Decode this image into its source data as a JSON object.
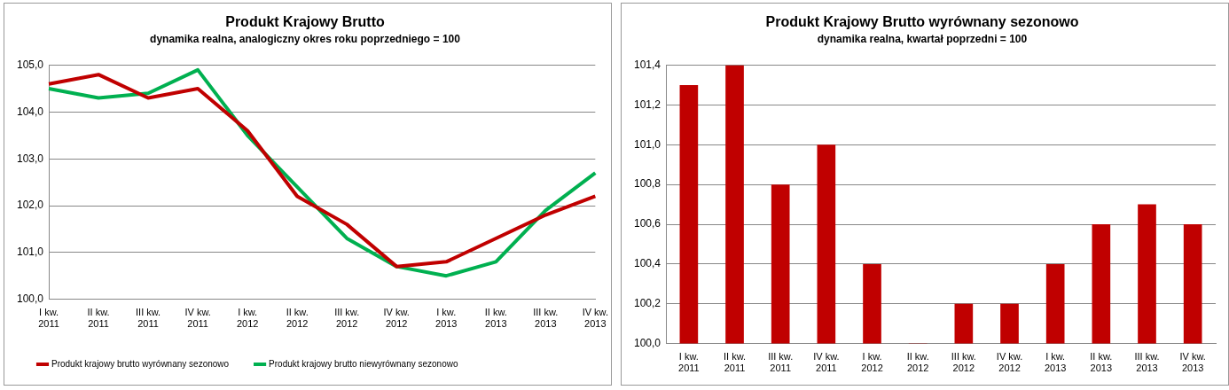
{
  "chart_data": [
    {
      "type": "line",
      "title": "Produkt Krajowy Brutto",
      "subtitle": "dynamika realna, analogiczny okres roku poprzedniego = 100",
      "categories": [
        "I kw. 2011",
        "II kw. 2011",
        "III kw. 2011",
        "IV kw. 2011",
        "I kw. 2012",
        "II kw. 2012",
        "III kw. 2012",
        "IV kw. 2012",
        "I kw. 2013",
        "II kw. 2013",
        "III kw. 2013",
        "IV kw. 2013"
      ],
      "series": [
        {
          "name": "Produkt krajowy brutto wyrównany sezonowo",
          "color": "#c00000",
          "values": [
            104.6,
            104.8,
            104.3,
            104.5,
            103.6,
            102.2,
            101.6,
            100.7,
            100.8,
            101.3,
            101.8,
            102.2
          ]
        },
        {
          "name": "Produkt krajowy brutto niewyrównany sezonowo",
          "color": "#00b050",
          "values": [
            104.5,
            104.3,
            104.4,
            104.9,
            103.5,
            102.4,
            101.3,
            100.7,
            100.5,
            100.8,
            101.9,
            102.7
          ]
        }
      ],
      "ylim": [
        100,
        105
      ],
      "yticks": [
        {
          "value": 100,
          "label": "100,0"
        },
        {
          "value": 101,
          "label": "101,0"
        },
        {
          "value": 102,
          "label": "102,0"
        },
        {
          "value": 103,
          "label": "103,0"
        },
        {
          "value": 104,
          "label": "104,0"
        },
        {
          "value": 105,
          "label": "105,0"
        }
      ],
      "grid": "y",
      "legend": "bottom",
      "marker": "none",
      "line_style": "solid"
    },
    {
      "type": "bar",
      "title": "Produkt Krajowy Brutto wyrównany sezonowo",
      "subtitle": "dynamika realna, kwartał poprzedni = 100",
      "categories": [
        "I kw. 2011",
        "II kw. 2011",
        "III kw. 2011",
        "IV kw. 2011",
        "I kw. 2012",
        "II kw. 2012",
        "III kw. 2012",
        "IV kw. 2012",
        "I kw. 2013",
        "II kw. 2013",
        "III kw. 2013",
        "IV kw. 2013"
      ],
      "values": [
        101.3,
        101.4,
        100.8,
        101.0,
        100.4,
        100.0,
        100.2,
        100.2,
        100.4,
        100.6,
        100.7,
        100.6
      ],
      "color": "#c00000",
      "ylim": [
        100,
        101.4
      ],
      "yticks": [
        {
          "value": 100,
          "label": "100,0"
        },
        {
          "value": 100.2,
          "label": "100,2"
        },
        {
          "value": 100.4,
          "label": "100,4"
        },
        {
          "value": 100.6,
          "label": "100,6"
        },
        {
          "value": 100.8,
          "label": "100,8"
        },
        {
          "value": 101,
          "label": "101,0"
        },
        {
          "value": 101.2,
          "label": "101,2"
        },
        {
          "value": 101.4,
          "label": "101,4"
        }
      ],
      "grid": "y",
      "legend": false
    }
  ]
}
